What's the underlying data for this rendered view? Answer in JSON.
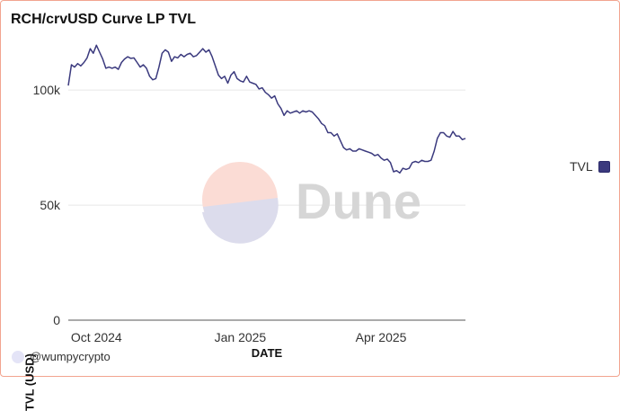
{
  "title": "RCH/crvUSD Curve LP TVL",
  "legend": {
    "label": "TVL"
  },
  "footer": {
    "handle": "@wumpycrypto"
  },
  "watermark": {
    "text": "Dune"
  },
  "colors": {
    "line": "#3b3a7e",
    "border": "#f2a48f",
    "grid": "#e8e8e8"
  },
  "chart_data": {
    "type": "line",
    "xlabel": "DATE",
    "ylabel": "TVL (USD)",
    "xlim": [
      "2024-09-13",
      "2025-05-25"
    ],
    "ylim": [
      0,
      120000
    ],
    "yticks": [
      0,
      50000,
      100000
    ],
    "ytick_labels": [
      "0",
      "50k",
      "100k"
    ],
    "xticks": [
      "2024-10-01",
      "2025-01-01",
      "2025-04-01"
    ],
    "xtick_labels": [
      "Oct 2024",
      "Jan 2025",
      "Apr 2025"
    ],
    "grid": true,
    "legend_position": "right",
    "series": [
      {
        "name": "TVL",
        "x": [
          "2024-09-13",
          "2024-09-15",
          "2024-09-17",
          "2024-09-19",
          "2024-09-21",
          "2024-09-23",
          "2024-09-25",
          "2024-09-27",
          "2024-09-29",
          "2024-10-01",
          "2024-10-03",
          "2024-10-05",
          "2024-10-07",
          "2024-10-09",
          "2024-10-11",
          "2024-10-13",
          "2024-10-15",
          "2024-10-17",
          "2024-10-19",
          "2024-10-21",
          "2024-10-23",
          "2024-10-25",
          "2024-10-27",
          "2024-10-29",
          "2024-10-31",
          "2024-11-02",
          "2024-11-04",
          "2024-11-06",
          "2024-11-08",
          "2024-11-10",
          "2024-11-12",
          "2024-11-14",
          "2024-11-16",
          "2024-11-18",
          "2024-11-20",
          "2024-11-22",
          "2024-11-24",
          "2024-11-26",
          "2024-11-28",
          "2024-11-30",
          "2024-12-02",
          "2024-12-04",
          "2024-12-06",
          "2024-12-08",
          "2024-12-10",
          "2024-12-12",
          "2024-12-14",
          "2024-12-16",
          "2024-12-18",
          "2024-12-20",
          "2024-12-22",
          "2024-12-24",
          "2024-12-26",
          "2024-12-28",
          "2024-12-30",
          "2025-01-01",
          "2025-01-03",
          "2025-01-05",
          "2025-01-07",
          "2025-01-09",
          "2025-01-11",
          "2025-01-13",
          "2025-01-15",
          "2025-01-17",
          "2025-01-19",
          "2025-01-21",
          "2025-01-23",
          "2025-01-25",
          "2025-01-27",
          "2025-01-29",
          "2025-01-31",
          "2025-02-02",
          "2025-02-04",
          "2025-02-06",
          "2025-02-08",
          "2025-02-10",
          "2025-02-12",
          "2025-02-14",
          "2025-02-16",
          "2025-02-18",
          "2025-02-20",
          "2025-02-22",
          "2025-02-24",
          "2025-02-26",
          "2025-02-28",
          "2025-03-02",
          "2025-03-04",
          "2025-03-06",
          "2025-03-08",
          "2025-03-10",
          "2025-03-12",
          "2025-03-14",
          "2025-03-16",
          "2025-03-18",
          "2025-03-20",
          "2025-03-22",
          "2025-03-24",
          "2025-03-26",
          "2025-03-28",
          "2025-03-30",
          "2025-04-01",
          "2025-04-03",
          "2025-04-05",
          "2025-04-07",
          "2025-04-09",
          "2025-04-11",
          "2025-04-13",
          "2025-04-15",
          "2025-04-17",
          "2025-04-19",
          "2025-04-21",
          "2025-04-23",
          "2025-04-25",
          "2025-04-27",
          "2025-04-29",
          "2025-05-01",
          "2025-05-03",
          "2025-05-05",
          "2025-05-07",
          "2025-05-09",
          "2025-05-11",
          "2025-05-13",
          "2025-05-15",
          "2025-05-17",
          "2025-05-19",
          "2025-05-21",
          "2025-05-23",
          "2025-05-25"
        ],
        "values": [
          102000,
          111000,
          110000,
          111500,
          110500,
          112000,
          114000,
          118000,
          116000,
          119500,
          116500,
          113500,
          109500,
          110000,
          109500,
          110000,
          109000,
          112000,
          113500,
          114500,
          113800,
          114000,
          112000,
          110000,
          111000,
          109500,
          106000,
          104500,
          105000,
          110000,
          116000,
          117500,
          116500,
          112500,
          114500,
          114000,
          115500,
          114500,
          115500,
          116000,
          114500,
          115000,
          116500,
          118000,
          116500,
          117500,
          114500,
          110500,
          106500,
          105000,
          106000,
          103000,
          106500,
          108000,
          105000,
          104000,
          103500,
          106000,
          103500,
          103000,
          102500,
          100500,
          101000,
          99000,
          98000,
          96500,
          97500,
          94000,
          92000,
          89000,
          91000,
          90000,
          90500,
          91000,
          90000,
          91000,
          90500,
          91000,
          90500,
          89000,
          87500,
          85500,
          84500,
          81500,
          81500,
          80000,
          81000,
          78000,
          75000,
          74000,
          74500,
          73500,
          73500,
          74500,
          74000,
          73500,
          73000,
          72500,
          71500,
          72000,
          70500,
          69500,
          70000,
          68500,
          64500,
          65000,
          64000,
          66000,
          65500,
          66000,
          68500,
          69000,
          68500,
          69500,
          69000,
          69000,
          69500,
          73500,
          79000,
          81500,
          81500,
          80000,
          79500,
          82000,
          80000,
          80000,
          78500,
          79000
        ]
      }
    ]
  }
}
